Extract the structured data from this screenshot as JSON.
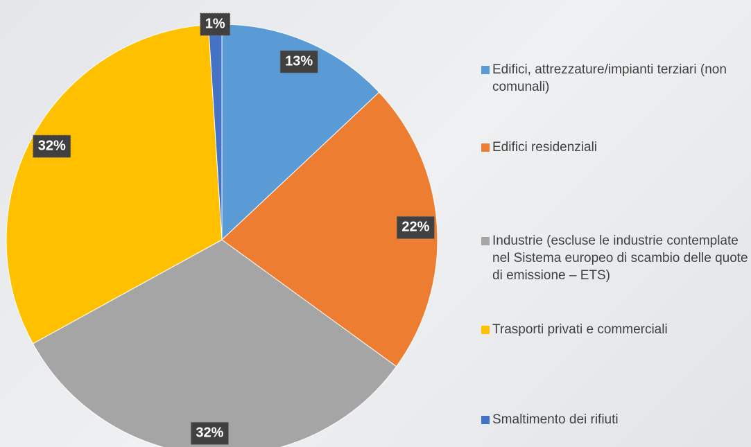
{
  "chart_data": {
    "type": "pie",
    "categories": [
      "Edifici, attrezzature/impianti terziari (non comunali)",
      "Edifici residenziali",
      "Industrie (escluse le industrie contemplate nel Sistema europeo di scambio delle quote di emissione – ETS)",
      "Trasporti privati e commerciali",
      "Smaltimento dei rifiuti"
    ],
    "values": [
      13,
      22,
      32,
      32,
      1
    ],
    "value_labels": [
      "13%",
      "22%",
      "32%",
      "32%",
      "1%"
    ],
    "colors": [
      "#5b9bd5",
      "#ed7d31",
      "#a5a5a5",
      "#ffc000",
      "#4472c4"
    ],
    "legend": "right"
  }
}
